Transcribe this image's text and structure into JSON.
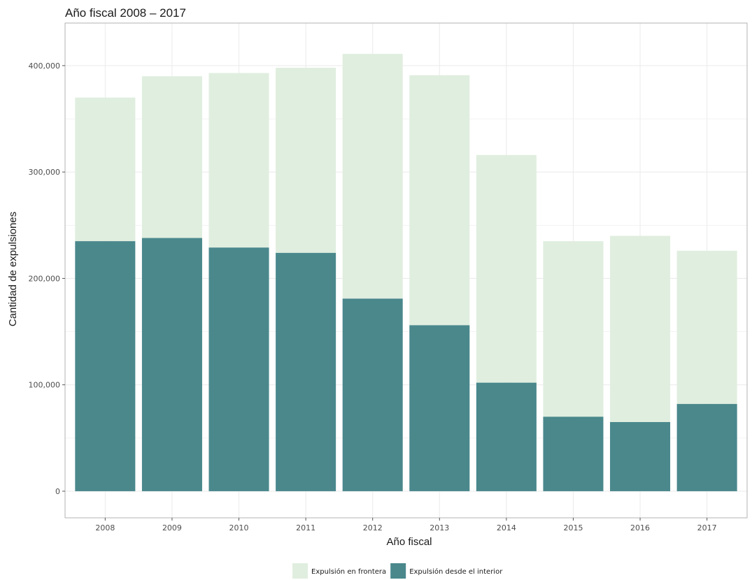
{
  "colors": {
    "frontera": "#e0eedf",
    "interior": "#4a888c",
    "grid": "#ececec",
    "panel_border": "#b3b3b3",
    "background": "#ffffff"
  },
  "chart_data": {
    "type": "bar",
    "stacked": true,
    "title": "Año fiscal 2008 – 2017",
    "xlabel": "Año fiscal",
    "ylabel": "Cantidad de expulsiones",
    "categories": [
      "2008",
      "2009",
      "2010",
      "2011",
      "2012",
      "2013",
      "2014",
      "2015",
      "2016",
      "2017"
    ],
    "series": [
      {
        "name": "Expulsión desde el interior",
        "values": [
          235000,
          238000,
          229000,
          224000,
          181000,
          156000,
          102000,
          70000,
          65000,
          82000
        ]
      },
      {
        "name": "Expulsión en frontera",
        "values": [
          135000,
          152000,
          164000,
          174000,
          230000,
          235000,
          214000,
          165000,
          175000,
          144000
        ]
      }
    ],
    "totals": [
      370000,
      390000,
      393000,
      398000,
      411000,
      391000,
      316000,
      235000,
      240000,
      226000
    ],
    "yticks": [
      0,
      100000,
      200000,
      300000,
      400000
    ],
    "ytick_labels": [
      "0",
      "100,000",
      "200,000",
      "300,000",
      "400,000"
    ],
    "ylim": [
      -25000,
      440000
    ],
    "grid": true,
    "legend": {
      "position": "bottom",
      "entries": [
        "Expulsión en frontera",
        "Expulsión desde el interior"
      ]
    }
  }
}
